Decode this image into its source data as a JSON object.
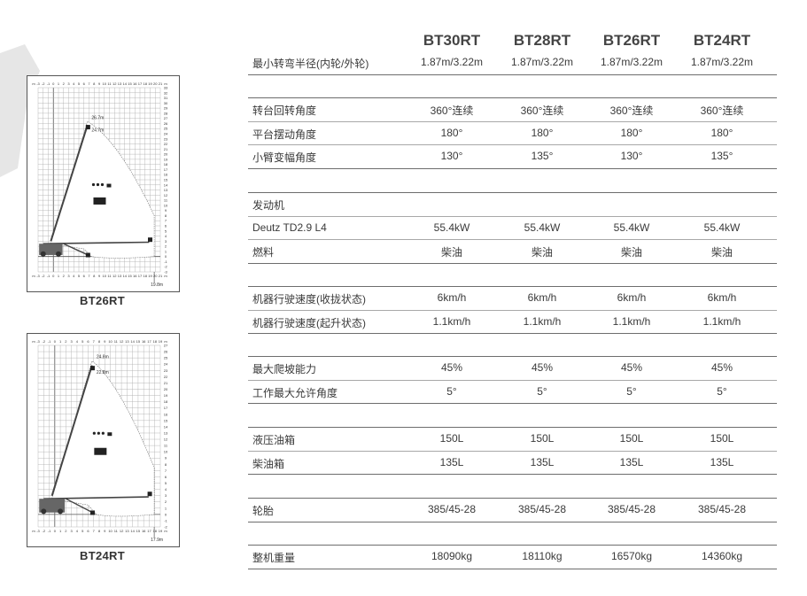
{
  "models": [
    "BT30RT",
    "BT28RT",
    "BT26RT",
    "BT24RT"
  ],
  "spec_groups": [
    {
      "rows": [
        {
          "label": "最小转弯半径(内轮/外轮)",
          "values": [
            "1.87m/3.22m",
            "1.87m/3.22m",
            "1.87m/3.22m",
            "1.87m/3.22m"
          ]
        }
      ]
    },
    {
      "rows": [
        {
          "label": "转台回转角度",
          "values": [
            "360°连续",
            "360°连续",
            "360°连续",
            "360°连续"
          ]
        },
        {
          "label": "平台摆动角度",
          "values": [
            "180°",
            "180°",
            "180°",
            "180°"
          ]
        },
        {
          "label": "小臂变幅角度",
          "values": [
            "130°",
            "135°",
            "130°",
            "135°"
          ]
        }
      ]
    },
    {
      "rows": [
        {
          "label": "发动机",
          "values": [
            "",
            "",
            "",
            ""
          ]
        },
        {
          "label": "Deutz TD2.9 L4",
          "values": [
            "55.4kW",
            "55.4kW",
            "55.4kW",
            "55.4kW"
          ]
        },
        {
          "label": "燃料",
          "values": [
            "柴油",
            "柴油",
            "柴油",
            "柴油"
          ]
        }
      ]
    },
    {
      "rows": [
        {
          "label": "机器行驶速度(收拢状态)",
          "values": [
            "6km/h",
            "6km/h",
            "6km/h",
            "6km/h"
          ]
        },
        {
          "label": "机器行驶速度(起升状态)",
          "values": [
            "1.1km/h",
            "1.1km/h",
            "1.1km/h",
            "1.1km/h"
          ]
        }
      ]
    },
    {
      "rows": [
        {
          "label": "最大爬坡能力",
          "values": [
            "45%",
            "45%",
            "45%",
            "45%"
          ]
        },
        {
          "label": "工作最大允许角度",
          "values": [
            "5°",
            "5°",
            "5°",
            "5°"
          ]
        }
      ]
    },
    {
      "rows": [
        {
          "label": "液压油箱",
          "values": [
            "150L",
            "150L",
            "150L",
            "150L"
          ]
        },
        {
          "label": "柴油箱",
          "values": [
            "135L",
            "135L",
            "135L",
            "135L"
          ]
        }
      ]
    },
    {
      "rows": [
        {
          "label": "轮胎",
          "values": [
            "385/45-28",
            "385/45-28",
            "385/45-28",
            "385/45-28"
          ]
        }
      ]
    },
    {
      "rows": [
        {
          "label": "整机重量",
          "values": [
            "18090kg",
            "18110kg",
            "16570kg",
            "14360kg"
          ]
        }
      ]
    }
  ],
  "diagrams": [
    {
      "model": "BT26RT",
      "unit": "m",
      "x_range": [
        -3,
        21
      ],
      "y_range": [
        -3,
        33
      ],
      "platform_height": "26.7m",
      "working_height_mark": "24.7m",
      "outreach": "19.8m",
      "outreach_value": 19.8,
      "height_value": 26.7
    },
    {
      "model": "BT24RT",
      "unit": "m",
      "x_range": [
        -3,
        19
      ],
      "y_range": [
        -2,
        27
      ],
      "platform_height": "24.8m",
      "working_height_mark": "22.8m",
      "outreach": "17.9m",
      "outreach_value": 17.9,
      "height_value": 24.8
    }
  ],
  "colors": {
    "rule_dark": "#6d6d6d",
    "rule_light": "#a8a8a8",
    "text": "#3a3a3a",
    "grid": "#9a9a9a"
  }
}
